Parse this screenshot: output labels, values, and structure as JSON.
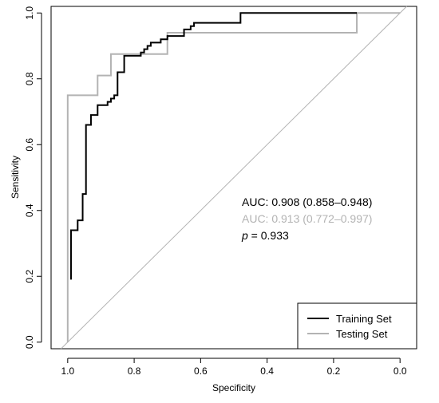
{
  "chart_data": {
    "type": "line",
    "xlabel": "Specificity",
    "ylabel": "Sensitivity",
    "xlim": [
      1.05,
      -0.05
    ],
    "ylim": [
      -0.02,
      1.02
    ],
    "x_ticks": [
      "1.0",
      "0.8",
      "0.6",
      "0.4",
      "0.2",
      "0.0"
    ],
    "y_ticks": [
      "0.0",
      "0.2",
      "0.4",
      "0.6",
      "0.8",
      "1.0"
    ],
    "grid": false,
    "legend_position": "bottom-right",
    "colors": {
      "training": "#000000",
      "testing": "#b3b3b3",
      "diagonal": "#b3b3b3"
    },
    "series": [
      {
        "name": "Training Set",
        "color": "#000000",
        "points": [
          [
            0.99,
            0.19
          ],
          [
            0.99,
            0.34
          ],
          [
            0.97,
            0.34
          ],
          [
            0.97,
            0.37
          ],
          [
            0.955,
            0.37
          ],
          [
            0.955,
            0.45
          ],
          [
            0.945,
            0.45
          ],
          [
            0.945,
            0.66
          ],
          [
            0.93,
            0.66
          ],
          [
            0.93,
            0.69
          ],
          [
            0.91,
            0.69
          ],
          [
            0.91,
            0.72
          ],
          [
            0.88,
            0.72
          ],
          [
            0.88,
            0.73
          ],
          [
            0.87,
            0.73
          ],
          [
            0.87,
            0.74
          ],
          [
            0.86,
            0.74
          ],
          [
            0.86,
            0.75
          ],
          [
            0.85,
            0.75
          ],
          [
            0.85,
            0.82
          ],
          [
            0.83,
            0.82
          ],
          [
            0.83,
            0.87
          ],
          [
            0.78,
            0.87
          ],
          [
            0.78,
            0.88
          ],
          [
            0.77,
            0.88
          ],
          [
            0.77,
            0.89
          ],
          [
            0.76,
            0.89
          ],
          [
            0.76,
            0.9
          ],
          [
            0.75,
            0.9
          ],
          [
            0.75,
            0.91
          ],
          [
            0.72,
            0.91
          ],
          [
            0.72,
            0.92
          ],
          [
            0.7,
            0.92
          ],
          [
            0.7,
            0.93
          ],
          [
            0.65,
            0.93
          ],
          [
            0.65,
            0.95
          ],
          [
            0.63,
            0.95
          ],
          [
            0.63,
            0.96
          ],
          [
            0.62,
            0.96
          ],
          [
            0.62,
            0.97
          ],
          [
            0.48,
            0.97
          ],
          [
            0.48,
            1.0
          ],
          [
            0.13,
            1.0
          ]
        ]
      },
      {
        "name": "Testing Set",
        "color": "#b3b3b3",
        "points": [
          [
            1.0,
            0.0
          ],
          [
            1.0,
            0.75
          ],
          [
            0.91,
            0.75
          ],
          [
            0.91,
            0.81
          ],
          [
            0.87,
            0.81
          ],
          [
            0.87,
            0.875
          ],
          [
            0.7,
            0.875
          ],
          [
            0.7,
            0.94
          ],
          [
            0.13,
            0.94
          ],
          [
            0.13,
            1.0
          ],
          [
            0.0,
            1.0
          ]
        ]
      }
    ],
    "annotations": {
      "auc_training_label": "AUC: 0.908 (0.858–0.948)",
      "auc_testing_label": "AUC: 0.913 (0.772–0.997)",
      "p_symbol": "p",
      "p_value": " = 0.933"
    }
  }
}
